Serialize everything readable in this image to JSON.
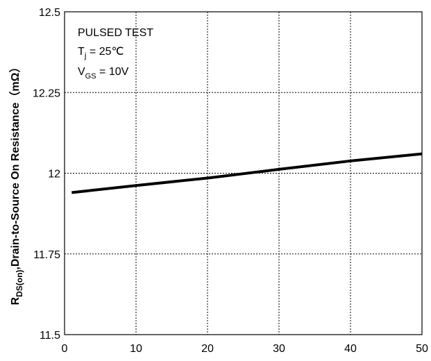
{
  "chart_data": {
    "type": "line",
    "title": "",
    "xlabel": "",
    "ylabel_main": "R",
    "ylabel_sub": "DS(on)",
    "ylabel_rest": ",Drain-to-Source On Resistance（mΩ）",
    "xlim": [
      0,
      50
    ],
    "ylim": [
      11.5,
      12.5
    ],
    "x_ticks": [
      0,
      10,
      20,
      30,
      40,
      50
    ],
    "x_tick_labels": [
      "0",
      "10",
      "20",
      "30",
      "40",
      "50"
    ],
    "y_ticks": [
      11.5,
      11.75,
      12,
      12.25,
      12.5
    ],
    "y_tick_labels": [
      "11.5",
      "11.75",
      "12",
      "12.25",
      "12.5"
    ],
    "grid": true,
    "annotations": {
      "line1": "PULSED TEST",
      "line2_main": "T",
      "line2_sub": "j",
      "line2_rest": " = 25℃",
      "line3_main": "V",
      "line3_sub": "GS",
      "line3_rest": " = 10V"
    },
    "series": [
      {
        "x": [
          1,
          10,
          20,
          30,
          40,
          50
        ],
        "y": [
          11.94,
          11.962,
          11.985,
          12.012,
          12.038,
          12.06
        ],
        "color": "#000000"
      }
    ]
  }
}
